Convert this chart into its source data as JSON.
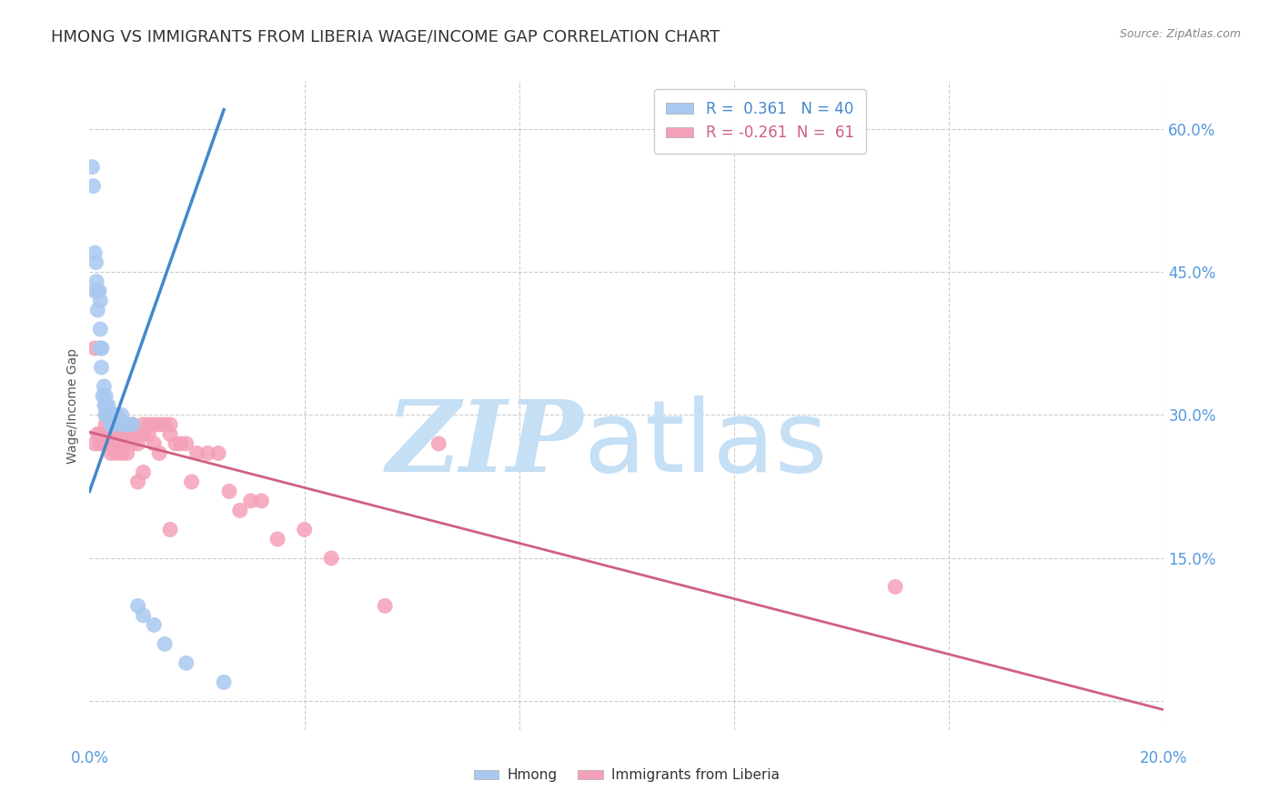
{
  "title": "HMONG VS IMMIGRANTS FROM LIBERIA WAGE/INCOME GAP CORRELATION CHART",
  "source": "Source: ZipAtlas.com",
  "ylabel": "Wage/Income Gap",
  "xmin": 0.0,
  "xmax": 0.2,
  "ymin": -0.03,
  "ymax": 0.65,
  "hmong_R": 0.361,
  "hmong_N": 40,
  "liberia_R": -0.261,
  "liberia_N": 61,
  "hmong_color": "#a8c8f0",
  "liberia_color": "#f4a0b8",
  "hmong_line_color": "#4488cc",
  "liberia_line_color": "#d06080",
  "watermark_zip_color": "#c5dff5",
  "watermark_atlas_color": "#c5dff5",
  "background_color": "#ffffff",
  "title_fontsize": 13,
  "axis_label_fontsize": 10,
  "legend_fontsize": 12,
  "ytick_positions": [
    0.0,
    0.15,
    0.3,
    0.45,
    0.6
  ],
  "ytick_labels": [
    "",
    "15.0%",
    "30.0%",
    "45.0%",
    "60.0%"
  ],
  "xtick_positions": [
    0.0,
    0.04,
    0.08,
    0.12,
    0.16,
    0.2
  ],
  "hmong_x": [
    0.0005,
    0.0007,
    0.001,
    0.001,
    0.0012,
    0.0013,
    0.0015,
    0.0015,
    0.0018,
    0.002,
    0.002,
    0.002,
    0.0022,
    0.0023,
    0.0025,
    0.0027,
    0.0028,
    0.003,
    0.003,
    0.003,
    0.003,
    0.0032,
    0.0035,
    0.0035,
    0.004,
    0.004,
    0.0042,
    0.0045,
    0.005,
    0.005,
    0.006,
    0.006,
    0.007,
    0.008,
    0.009,
    0.01,
    0.012,
    0.014,
    0.018,
    0.025
  ],
  "hmong_y": [
    0.56,
    0.54,
    0.47,
    0.43,
    0.46,
    0.44,
    0.43,
    0.41,
    0.43,
    0.37,
    0.39,
    0.42,
    0.35,
    0.37,
    0.32,
    0.33,
    0.31,
    0.32,
    0.31,
    0.31,
    0.3,
    0.3,
    0.31,
    0.3,
    0.3,
    0.29,
    0.3,
    0.29,
    0.3,
    0.3,
    0.29,
    0.3,
    0.29,
    0.29,
    0.1,
    0.09,
    0.08,
    0.06,
    0.04,
    0.02
  ],
  "liberia_x": [
    0.001,
    0.001,
    0.0015,
    0.002,
    0.002,
    0.003,
    0.003,
    0.003,
    0.003,
    0.004,
    0.004,
    0.004,
    0.004,
    0.005,
    0.005,
    0.005,
    0.005,
    0.006,
    0.006,
    0.006,
    0.006,
    0.007,
    0.007,
    0.007,
    0.007,
    0.008,
    0.008,
    0.008,
    0.009,
    0.009,
    0.009,
    0.01,
    0.01,
    0.01,
    0.011,
    0.011,
    0.012,
    0.012,
    0.013,
    0.013,
    0.014,
    0.015,
    0.015,
    0.015,
    0.016,
    0.017,
    0.018,
    0.019,
    0.02,
    0.022,
    0.024,
    0.026,
    0.028,
    0.03,
    0.032,
    0.035,
    0.04,
    0.045,
    0.055,
    0.065,
    0.15
  ],
  "liberia_y": [
    0.37,
    0.27,
    0.28,
    0.28,
    0.27,
    0.3,
    0.29,
    0.28,
    0.27,
    0.29,
    0.28,
    0.27,
    0.26,
    0.29,
    0.28,
    0.27,
    0.26,
    0.29,
    0.28,
    0.27,
    0.26,
    0.29,
    0.28,
    0.27,
    0.26,
    0.29,
    0.28,
    0.27,
    0.28,
    0.27,
    0.23,
    0.29,
    0.28,
    0.24,
    0.29,
    0.28,
    0.29,
    0.27,
    0.29,
    0.26,
    0.29,
    0.29,
    0.28,
    0.18,
    0.27,
    0.27,
    0.27,
    0.23,
    0.26,
    0.26,
    0.26,
    0.22,
    0.2,
    0.21,
    0.21,
    0.17,
    0.18,
    0.15,
    0.1,
    0.27,
    0.12
  ],
  "hmong_line_x0": 0.0,
  "hmong_line_x1": 0.025,
  "liberia_line_x0": 0.0,
  "liberia_line_x1": 0.2
}
